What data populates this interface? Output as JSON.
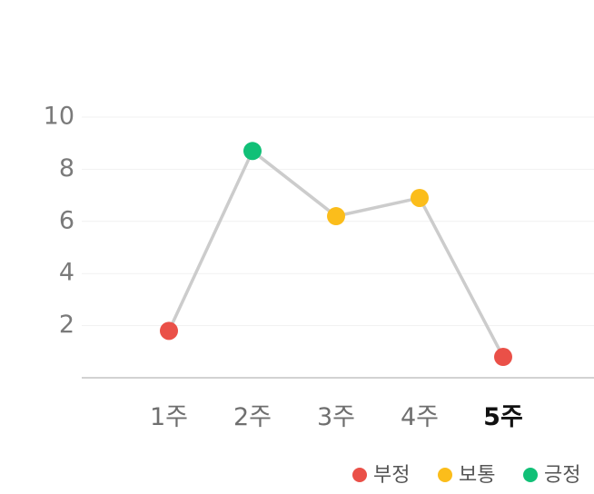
{
  "chart_data": {
    "type": "line",
    "categories": [
      "1주",
      "2주",
      "3주",
      "4주",
      "5주"
    ],
    "values": [
      1.8,
      8.7,
      6.2,
      6.9,
      0.8
    ],
    "point_status": [
      "부정",
      "긍정",
      "보통",
      "보통",
      "부정"
    ],
    "highlighted_category": "5주",
    "y_ticks": [
      2,
      4,
      6,
      8,
      10
    ],
    "ylim": [
      0,
      10
    ],
    "grid": true,
    "line_color": "#cccccc",
    "legend_position": "bottom-right",
    "legend": [
      {
        "label": "부정",
        "color": "#ea5048"
      },
      {
        "label": "보통",
        "color": "#fbbd1b"
      },
      {
        "label": "긍정",
        "color": "#11c077"
      }
    ]
  }
}
